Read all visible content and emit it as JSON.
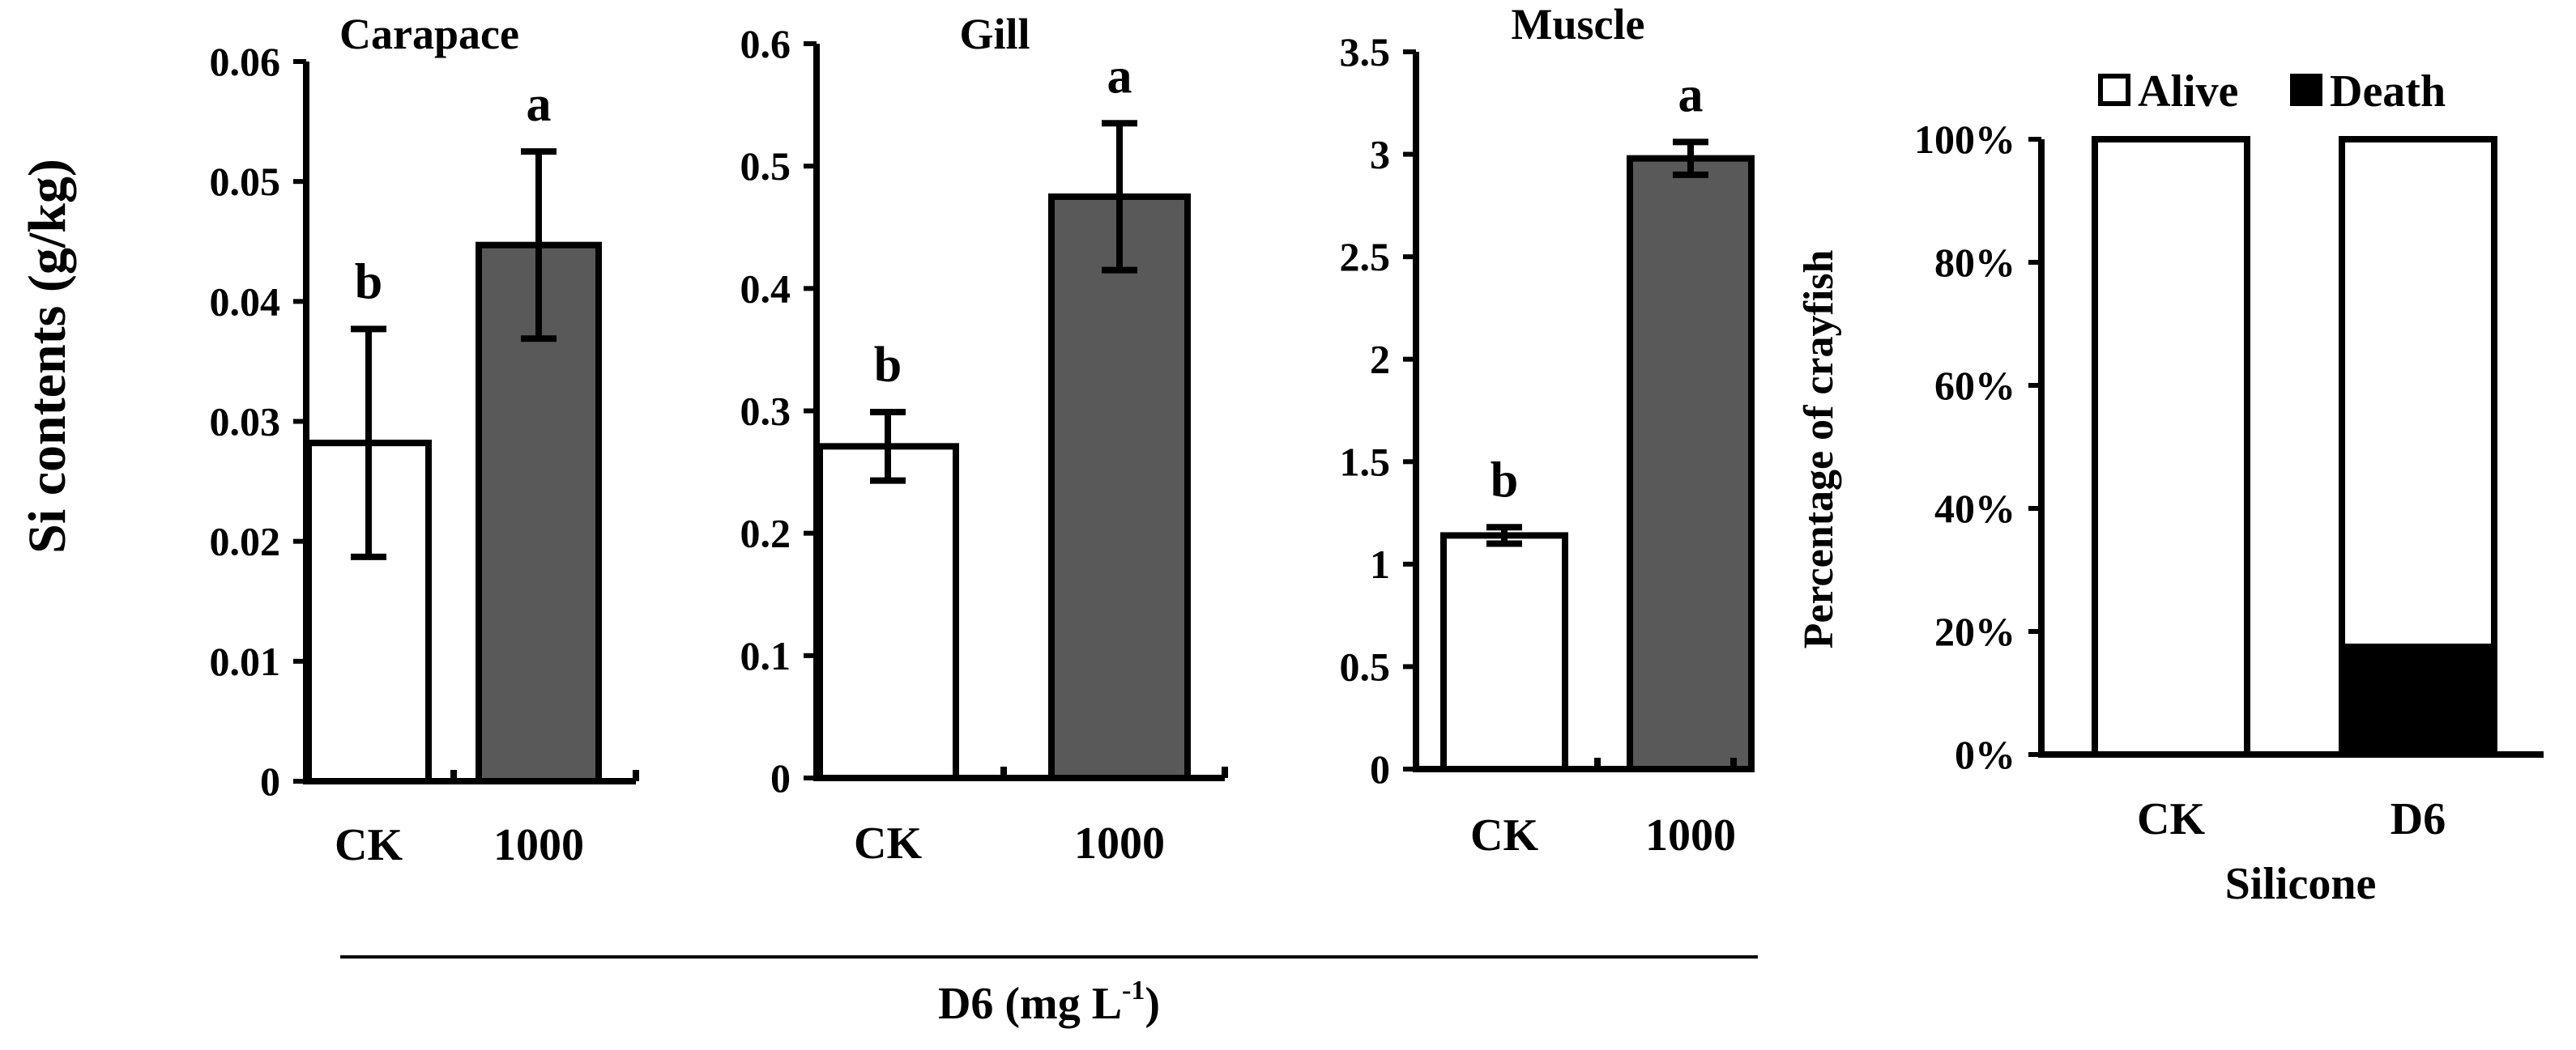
{
  "shared": {
    "ylabel": "Si contents (g/kg)",
    "group_label": {
      "main": "D6 (mg L",
      "sup": "-1",
      "close": ")"
    }
  },
  "chart_data": [
    {
      "type": "bar",
      "title": "Carapace",
      "categories": [
        "CK",
        "1000"
      ],
      "values": [
        0.0282,
        0.0447
      ],
      "errors": [
        0.0095,
        0.0078
      ],
      "letters": [
        "b",
        "a"
      ],
      "colors": [
        "#ffffff",
        "#595959"
      ],
      "ylim": [
        0,
        0.06
      ],
      "yticks": [
        0,
        0.01,
        0.02,
        0.03,
        0.04,
        0.05,
        0.06
      ],
      "ytick_labels": [
        "0",
        "0.01",
        "0.02",
        "0.03",
        "0.04",
        "0.05",
        "0.06"
      ],
      "xlabel": "D6 (mg L-1)",
      "ylabel": "Si contents (g/kg)"
    },
    {
      "type": "bar",
      "title": "Gill",
      "categories": [
        "CK",
        "1000"
      ],
      "values": [
        0.271,
        0.475
      ],
      "errors": [
        0.028,
        0.06
      ],
      "letters": [
        "b",
        "a"
      ],
      "colors": [
        "#ffffff",
        "#595959"
      ],
      "ylim": [
        0,
        0.6
      ],
      "yticks": [
        0,
        0.1,
        0.2,
        0.3,
        0.4,
        0.5,
        0.6
      ],
      "ytick_labels": [
        "0",
        "0.1",
        "0.2",
        "0.3",
        "0.4",
        "0.5",
        "0.6"
      ],
      "xlabel": "D6 (mg L-1)"
    },
    {
      "type": "bar",
      "title": "Muscle",
      "categories": [
        "CK",
        "1000"
      ],
      "values": [
        1.14,
        2.98
      ],
      "errors": [
        0.04,
        0.08
      ],
      "letters": [
        "b",
        "a"
      ],
      "colors": [
        "#ffffff",
        "#595959"
      ],
      "ylim": [
        0,
        3.5
      ],
      "yticks": [
        0,
        0.5,
        1,
        1.5,
        2,
        2.5,
        3,
        3.5
      ],
      "ytick_labels": [
        "0",
        "0.5",
        "1",
        "1.5",
        "2",
        "2.5",
        "3",
        "3.5"
      ],
      "xlabel": "D6 (mg L-1)"
    },
    {
      "type": "bar",
      "stacked": true,
      "categories": [
        "CK",
        "D6"
      ],
      "series": [
        {
          "name": "Death",
          "values": [
            0,
            17.5
          ],
          "color": "#000000"
        },
        {
          "name": "Alive",
          "values": [
            100,
            82.5
          ],
          "color": "#ffffff"
        }
      ],
      "legend_order": [
        "Alive",
        "Death"
      ],
      "legend_position": "top",
      "ylim": [
        0,
        100
      ],
      "yticks": [
        0,
        20,
        40,
        60,
        80,
        100
      ],
      "ytick_labels": [
        "0%",
        "20%",
        "40%",
        "60%",
        "80%",
        "100%"
      ],
      "xlabel": "Silicone",
      "ylabel": "Percentage of crayfish"
    }
  ]
}
